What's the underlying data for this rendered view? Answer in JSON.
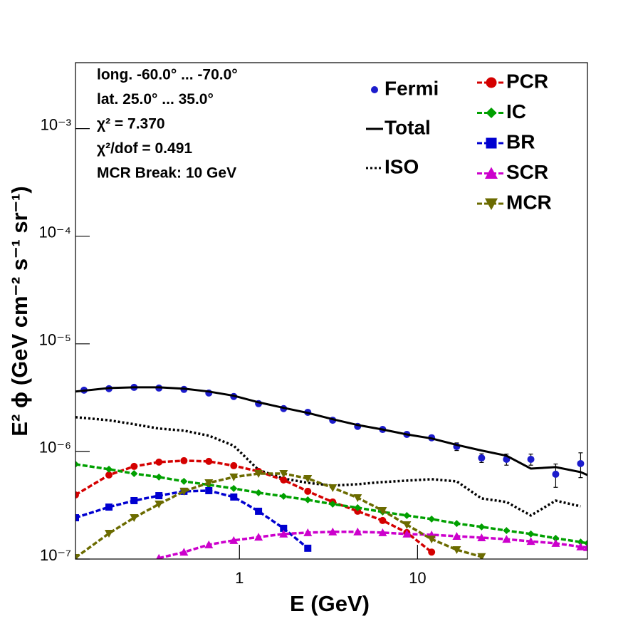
{
  "chart_data": {
    "type": "line",
    "xlabel": "E (GeV)",
    "ylabel": "E² ϕ (GeV cm⁻² s⁻¹ sr⁻¹)",
    "annotations": [
      "long. -60.0° ... -70.0°",
      "lat. 25.0° ... 35.0°",
      "χ² = 7.370",
      "χ²/dof = 0.491",
      "MCR Break: 10 GeV"
    ],
    "xscale": "log",
    "yscale": "log",
    "xlim": [
      0.12,
      90
    ],
    "ylim": [
      1e-07,
      0.0041
    ],
    "xticks": [
      1,
      10
    ],
    "yticks": [
      {
        "value": 1e-07,
        "label": "10⁻⁷"
      },
      {
        "value": 1e-06,
        "label": "10⁻⁶"
      },
      {
        "value": 1e-05,
        "label": "10⁻⁵"
      },
      {
        "value": 0.0001,
        "label": "10⁻⁴"
      },
      {
        "value": 0.001,
        "label": "10⁻³"
      }
    ],
    "series": [
      {
        "name": "Fermi",
        "color": "#1c1ccc",
        "style": "points",
        "marker": "circle",
        "x": [
          0.134,
          0.185,
          0.256,
          0.353,
          0.488,
          0.673,
          0.929,
          1.28,
          1.77,
          2.42,
          3.34,
          4.61,
          6.37,
          8.71,
          12.0,
          16.6,
          22.9,
          31.6,
          43.3,
          59.7,
          82.4
        ],
        "values": [
          3.71e-06,
          3.83e-06,
          3.94e-06,
          3.88e-06,
          3.77e-06,
          3.49e-06,
          3.24e-06,
          2.78e-06,
          2.5e-06,
          2.31e-06,
          1.95e-06,
          1.71e-06,
          1.6e-06,
          1.44e-06,
          1.34e-06,
          1.11e-06,
          8.7e-07,
          8.45e-07,
          8.45e-07,
          6.14e-07,
          7.71e-07
        ],
        "errors": [
          1e-07,
          1e-07,
          1e-07,
          1e-07,
          1e-07,
          8e-08,
          8e-08,
          7e-08,
          6e-08,
          6e-08,
          5e-08,
          5e-08,
          5e-08,
          6e-08,
          7e-08,
          9e-08,
          8e-08,
          1e-07,
          1e-07,
          1.5e-07,
          2e-07
        ]
      },
      {
        "name": "Total",
        "color": "#000000",
        "style": "line",
        "dash": "solid",
        "x": [
          0.12,
          0.185,
          0.256,
          0.353,
          0.488,
          0.673,
          0.929,
          1.28,
          1.77,
          2.42,
          3.34,
          4.61,
          6.37,
          8.71,
          12.0,
          16.6,
          22.9,
          31.6,
          43.3,
          59.7,
          82.4,
          90
        ],
        "values": [
          3.6e-06,
          3.88e-06,
          3.94e-06,
          3.94e-06,
          3.83e-06,
          3.6e-06,
          3.29e-06,
          2.86e-06,
          2.54e-06,
          2.28e-06,
          1.99e-06,
          1.76e-06,
          1.6e-06,
          1.44e-06,
          1.32e-06,
          1.15e-06,
          1.02e-06,
          9.12e-07,
          6.93e-07,
          7.15e-07,
          6.43e-07,
          6.04e-07
        ]
      },
      {
        "name": "ISO",
        "color": "#000000",
        "style": "line",
        "dash": "dotted",
        "x": [
          0.12,
          0.185,
          0.256,
          0.353,
          0.488,
          0.673,
          0.929,
          1.28,
          1.77,
          2.42,
          3.34,
          4.61,
          6.37,
          8.71,
          12.0,
          16.6,
          22.9,
          31.6,
          43.3,
          59.7,
          82.4,
          90
        ],
        "values": [
          2.08e-06,
          1.95e-06,
          1.79e-06,
          1.63e-06,
          1.56e-06,
          1.4e-06,
          1.13e-06,
          6.73e-07,
          5.6e-07,
          5.11e-07,
          4.81e-07,
          4.96e-07,
          5.19e-07,
          5.35e-07,
          5.52e-07,
          5.27e-07,
          3.66e-07,
          3.39e-07,
          2.54e-07,
          3.49e-07,
          3.09e-07,
          null
        ]
      },
      {
        "name": "PCR",
        "color": "#d40000",
        "style": "line",
        "dash": "dashed",
        "marker": "circle",
        "x": [
          0.12,
          0.185,
          0.256,
          0.353,
          0.488,
          0.673,
          0.929,
          1.28,
          1.77,
          2.42,
          3.34,
          4.61,
          6.37,
          8.71,
          12.0,
          16.6,
          22.9,
          31.6,
          43.3,
          59.7,
          82.4,
          90
        ],
        "values": [
          3.94e-07,
          6.04e-07,
          7.26e-07,
          7.96e-07,
          8.2e-07,
          8.08e-07,
          7.37e-07,
          6.53e-07,
          5.43e-07,
          4.26e-07,
          3.39e-07,
          2.78e-07,
          2.28e-07,
          1.76e-07,
          1.16e-07,
          null,
          null,
          null,
          null,
          null,
          null,
          null
        ]
      },
      {
        "name": "IC",
        "color": "#00a000",
        "style": "line",
        "dash": "dashed",
        "marker": "diamond",
        "x": [
          0.12,
          0.185,
          0.256,
          0.353,
          0.488,
          0.673,
          0.929,
          1.28,
          1.77,
          2.42,
          3.34,
          4.61,
          6.37,
          8.71,
          12.0,
          16.6,
          22.9,
          31.6,
          43.3,
          59.7,
          82.4,
          90
        ],
        "values": [
          7.6e-07,
          6.83e-07,
          6.23e-07,
          5.78e-07,
          5.27e-07,
          4.89e-07,
          4.53e-07,
          4.13e-07,
          3.83e-07,
          3.55e-07,
          3.24e-07,
          3e-07,
          2.74e-07,
          2.54e-07,
          2.35e-07,
          2.14e-07,
          1.99e-07,
          1.84e-07,
          1.71e-07,
          1.56e-07,
          1.44e-07,
          1.4e-07
        ]
      },
      {
        "name": "BR",
        "color": "#0000d0",
        "style": "line",
        "dash": "dashed",
        "marker": "square",
        "x": [
          0.12,
          0.185,
          0.256,
          0.353,
          0.488,
          0.673,
          0.929,
          1.28,
          1.77,
          2.42,
          3.34,
          4.61,
          6.37,
          8.71,
          12.0,
          16.6,
          22.9,
          31.6,
          43.3,
          59.7,
          82.4,
          90
        ],
        "values": [
          2.42e-07,
          3.04e-07,
          3.49e-07,
          3.88e-07,
          4.26e-07,
          4.32e-07,
          3.77e-07,
          2.78e-07,
          1.93e-07,
          1.26e-07,
          null,
          null,
          null,
          null,
          null,
          null,
          null,
          null,
          null,
          null,
          null,
          null
        ]
      },
      {
        "name": "SCR",
        "color": "#cc00cc",
        "style": "line",
        "dash": "dashed",
        "marker": "triangle-up",
        "x": [
          0.12,
          0.185,
          0.256,
          0.353,
          0.488,
          0.673,
          0.929,
          1.28,
          1.77,
          2.42,
          3.34,
          4.61,
          6.37,
          8.71,
          12.0,
          16.6,
          22.9,
          31.6,
          43.3,
          59.7,
          82.4,
          90
        ],
        "values": [
          null,
          null,
          null,
          1.02e-07,
          1.16e-07,
          1.36e-07,
          1.49e-07,
          1.6e-07,
          1.71e-07,
          1.76e-07,
          1.79e-07,
          1.79e-07,
          1.76e-07,
          1.71e-07,
          1.68e-07,
          1.63e-07,
          1.58e-07,
          1.53e-07,
          1.46e-07,
          1.4e-07,
          1.3e-07,
          1.28e-07
        ]
      },
      {
        "name": "MCR",
        "color": "#6b6b00",
        "style": "line",
        "dash": "dashed",
        "marker": "triangle-down",
        "x": [
          0.12,
          0.185,
          0.256,
          0.353,
          0.488,
          0.673,
          0.929,
          1.28,
          1.77,
          2.42,
          3.34,
          4.61,
          6.37,
          8.71,
          12.0,
          16.6,
          22.9,
          31.6,
          43.3,
          59.7,
          82.4,
          90
        ],
        "values": [
          1.03e-07,
          1.73e-07,
          2.42e-07,
          3.24e-07,
          4.26e-07,
          5.11e-07,
          5.78e-07,
          6.23e-07,
          6.23e-07,
          5.6e-07,
          4.59e-07,
          3.71e-07,
          2.82e-07,
          2.08e-07,
          1.53e-07,
          1.22e-07,
          1.05e-07,
          null,
          null,
          null,
          null,
          null
        ]
      }
    ]
  }
}
